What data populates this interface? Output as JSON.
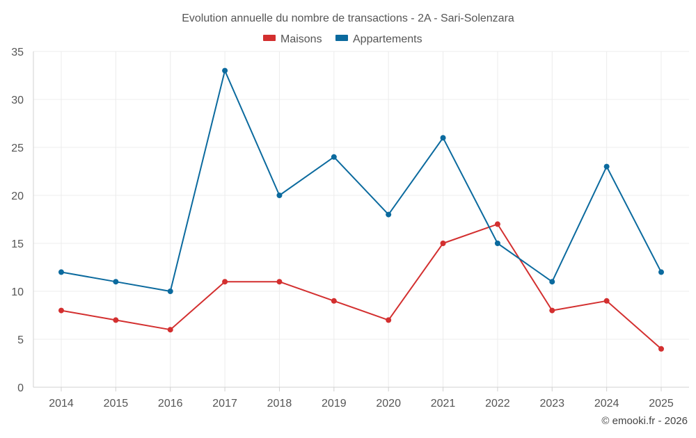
{
  "chart_data": {
    "type": "line",
    "title": "Evolution annuelle du nombre de transactions - 2A - Sari-Solenzara",
    "categories": [
      "2014",
      "2015",
      "2016",
      "2017",
      "2018",
      "2019",
      "2020",
      "2021",
      "2022",
      "2023",
      "2024",
      "2025"
    ],
    "series": [
      {
        "name": "Maisons",
        "color": "#d32f2f",
        "values": [
          8,
          7,
          6,
          11,
          11,
          9,
          7,
          15,
          17,
          8,
          9,
          4
        ]
      },
      {
        "name": "Appartements",
        "color": "#0b6a9e",
        "values": [
          12,
          11,
          10,
          33,
          20,
          24,
          18,
          26,
          15,
          11,
          23,
          12
        ]
      }
    ],
    "ylim": [
      0,
      35
    ],
    "yticks": [
      0,
      5,
      10,
      15,
      20,
      25,
      30,
      35
    ],
    "xlabel": "",
    "ylabel": "",
    "grid": true,
    "legend_position": "top-center"
  },
  "credit": "© emooki.fr - 2026"
}
